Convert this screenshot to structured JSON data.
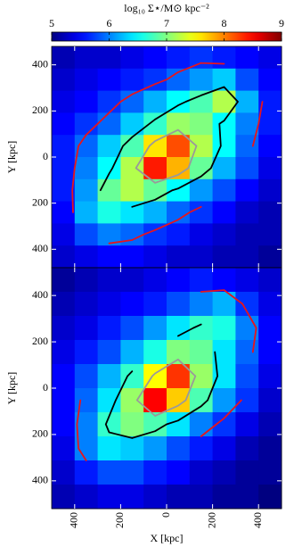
{
  "chart_data": [
    {
      "type": "heatmap",
      "colorbar_label": "log₁₀ Σ⋆/M⊙ kpc⁻²",
      "clim": [
        5,
        9
      ],
      "cticks": [
        5,
        6,
        7,
        8,
        9
      ],
      "ylabel": "Y [kpc]",
      "xlim": [
        -500,
        500
      ],
      "ylim": [
        -480,
        480
      ],
      "xticks": [
        -400,
        -200,
        0,
        200,
        400
      ],
      "yticks": [
        {
          "value": -400,
          "label": "400"
        },
        {
          "value": -200,
          "label": "200"
        },
        0,
        200,
        400
      ],
      "z": [
        [
          5.2,
          5.3,
          5.3,
          5.4,
          5.5,
          5.6,
          5.7,
          5.6,
          5.5,
          5.4
        ],
        [
          5.3,
          5.4,
          5.5,
          5.6,
          5.7,
          5.9,
          6.1,
          6.3,
          5.8,
          5.5
        ],
        [
          5.4,
          5.5,
          5.7,
          5.9,
          6.2,
          6.5,
          6.8,
          7.2,
          6.2,
          5.6
        ],
        [
          5.5,
          5.7,
          5.9,
          6.3,
          6.7,
          7.1,
          7.0,
          6.5,
          6.0,
          5.6
        ],
        [
          5.6,
          5.9,
          6.3,
          6.8,
          7.6,
          8.2,
          7.2,
          6.5,
          5.9,
          5.5
        ],
        [
          5.6,
          6.0,
          6.5,
          7.2,
          8.4,
          7.8,
          6.9,
          6.2,
          5.8,
          5.4
        ],
        [
          5.6,
          6.1,
          6.9,
          7.2,
          6.9,
          6.5,
          6.1,
          5.8,
          5.5,
          5.3
        ],
        [
          5.5,
          6.2,
          6.6,
          6.4,
          6.2,
          5.9,
          5.7,
          5.5,
          5.3,
          5.2
        ],
        [
          5.4,
          5.8,
          6.0,
          5.9,
          5.7,
          5.6,
          5.4,
          5.3,
          5.2,
          5.2
        ],
        [
          5.3,
          5.4,
          5.5,
          5.5,
          5.4,
          5.3,
          5.3,
          5.2,
          5.2,
          5.1
        ]
      ],
      "contours": [
        {
          "level": 5.8,
          "color": "#e8141c"
        },
        {
          "level": 6.6,
          "color": "#000000"
        },
        {
          "level": 7.4,
          "color": "#9a9a9a"
        }
      ]
    },
    {
      "type": "heatmap",
      "xlabel": "X [kpc]",
      "ylabel": "Y [kpc]",
      "xlim": [
        -500,
        500
      ],
      "ylim": [
        -520,
        520
      ],
      "xticks": [
        {
          "value": -400,
          "label": "400"
        },
        {
          "value": -200,
          "label": "200"
        },
        0,
        200,
        400
      ],
      "yticks": [
        {
          "value": -400,
          "label": "400"
        },
        {
          "value": -200,
          "label": "200"
        },
        0,
        200,
        400
      ],
      "z": [
        [
          5.1,
          5.2,
          5.3,
          5.3,
          5.4,
          5.5,
          5.6,
          5.5,
          5.4,
          5.3
        ],
        [
          5.2,
          5.3,
          5.4,
          5.5,
          5.6,
          5.8,
          6.0,
          6.2,
          5.7,
          5.4
        ],
        [
          5.3,
          5.4,
          5.6,
          5.8,
          6.1,
          6.4,
          6.7,
          6.6,
          6.0,
          5.5
        ],
        [
          5.4,
          5.6,
          5.8,
          6.2,
          6.6,
          7.0,
          6.9,
          6.4,
          5.9,
          5.5
        ],
        [
          5.5,
          5.8,
          6.2,
          6.7,
          7.5,
          8.3,
          7.1,
          6.4,
          5.8,
          5.4
        ],
        [
          5.5,
          5.9,
          6.4,
          7.1,
          8.5,
          7.7,
          6.8,
          6.1,
          5.7,
          5.3
        ],
        [
          5.5,
          6.0,
          6.7,
          7.0,
          6.8,
          6.4,
          6.0,
          5.7,
          5.4,
          5.2
        ],
        [
          5.4,
          6.0,
          6.4,
          6.3,
          6.1,
          5.8,
          5.6,
          5.4,
          5.2,
          5.1
        ],
        [
          5.3,
          5.6,
          5.8,
          5.8,
          5.6,
          5.5,
          5.3,
          5.2,
          5.1,
          5.1
        ],
        [
          5.2,
          5.3,
          5.4,
          5.4,
          5.3,
          5.2,
          5.2,
          5.1,
          5.1,
          5.0
        ]
      ],
      "contours": [
        {
          "level": 5.8,
          "color": "#e8141c"
        },
        {
          "level": 6.6,
          "color": "#000000"
        },
        {
          "level": 7.4,
          "color": "#9a9a9a"
        }
      ]
    }
  ]
}
